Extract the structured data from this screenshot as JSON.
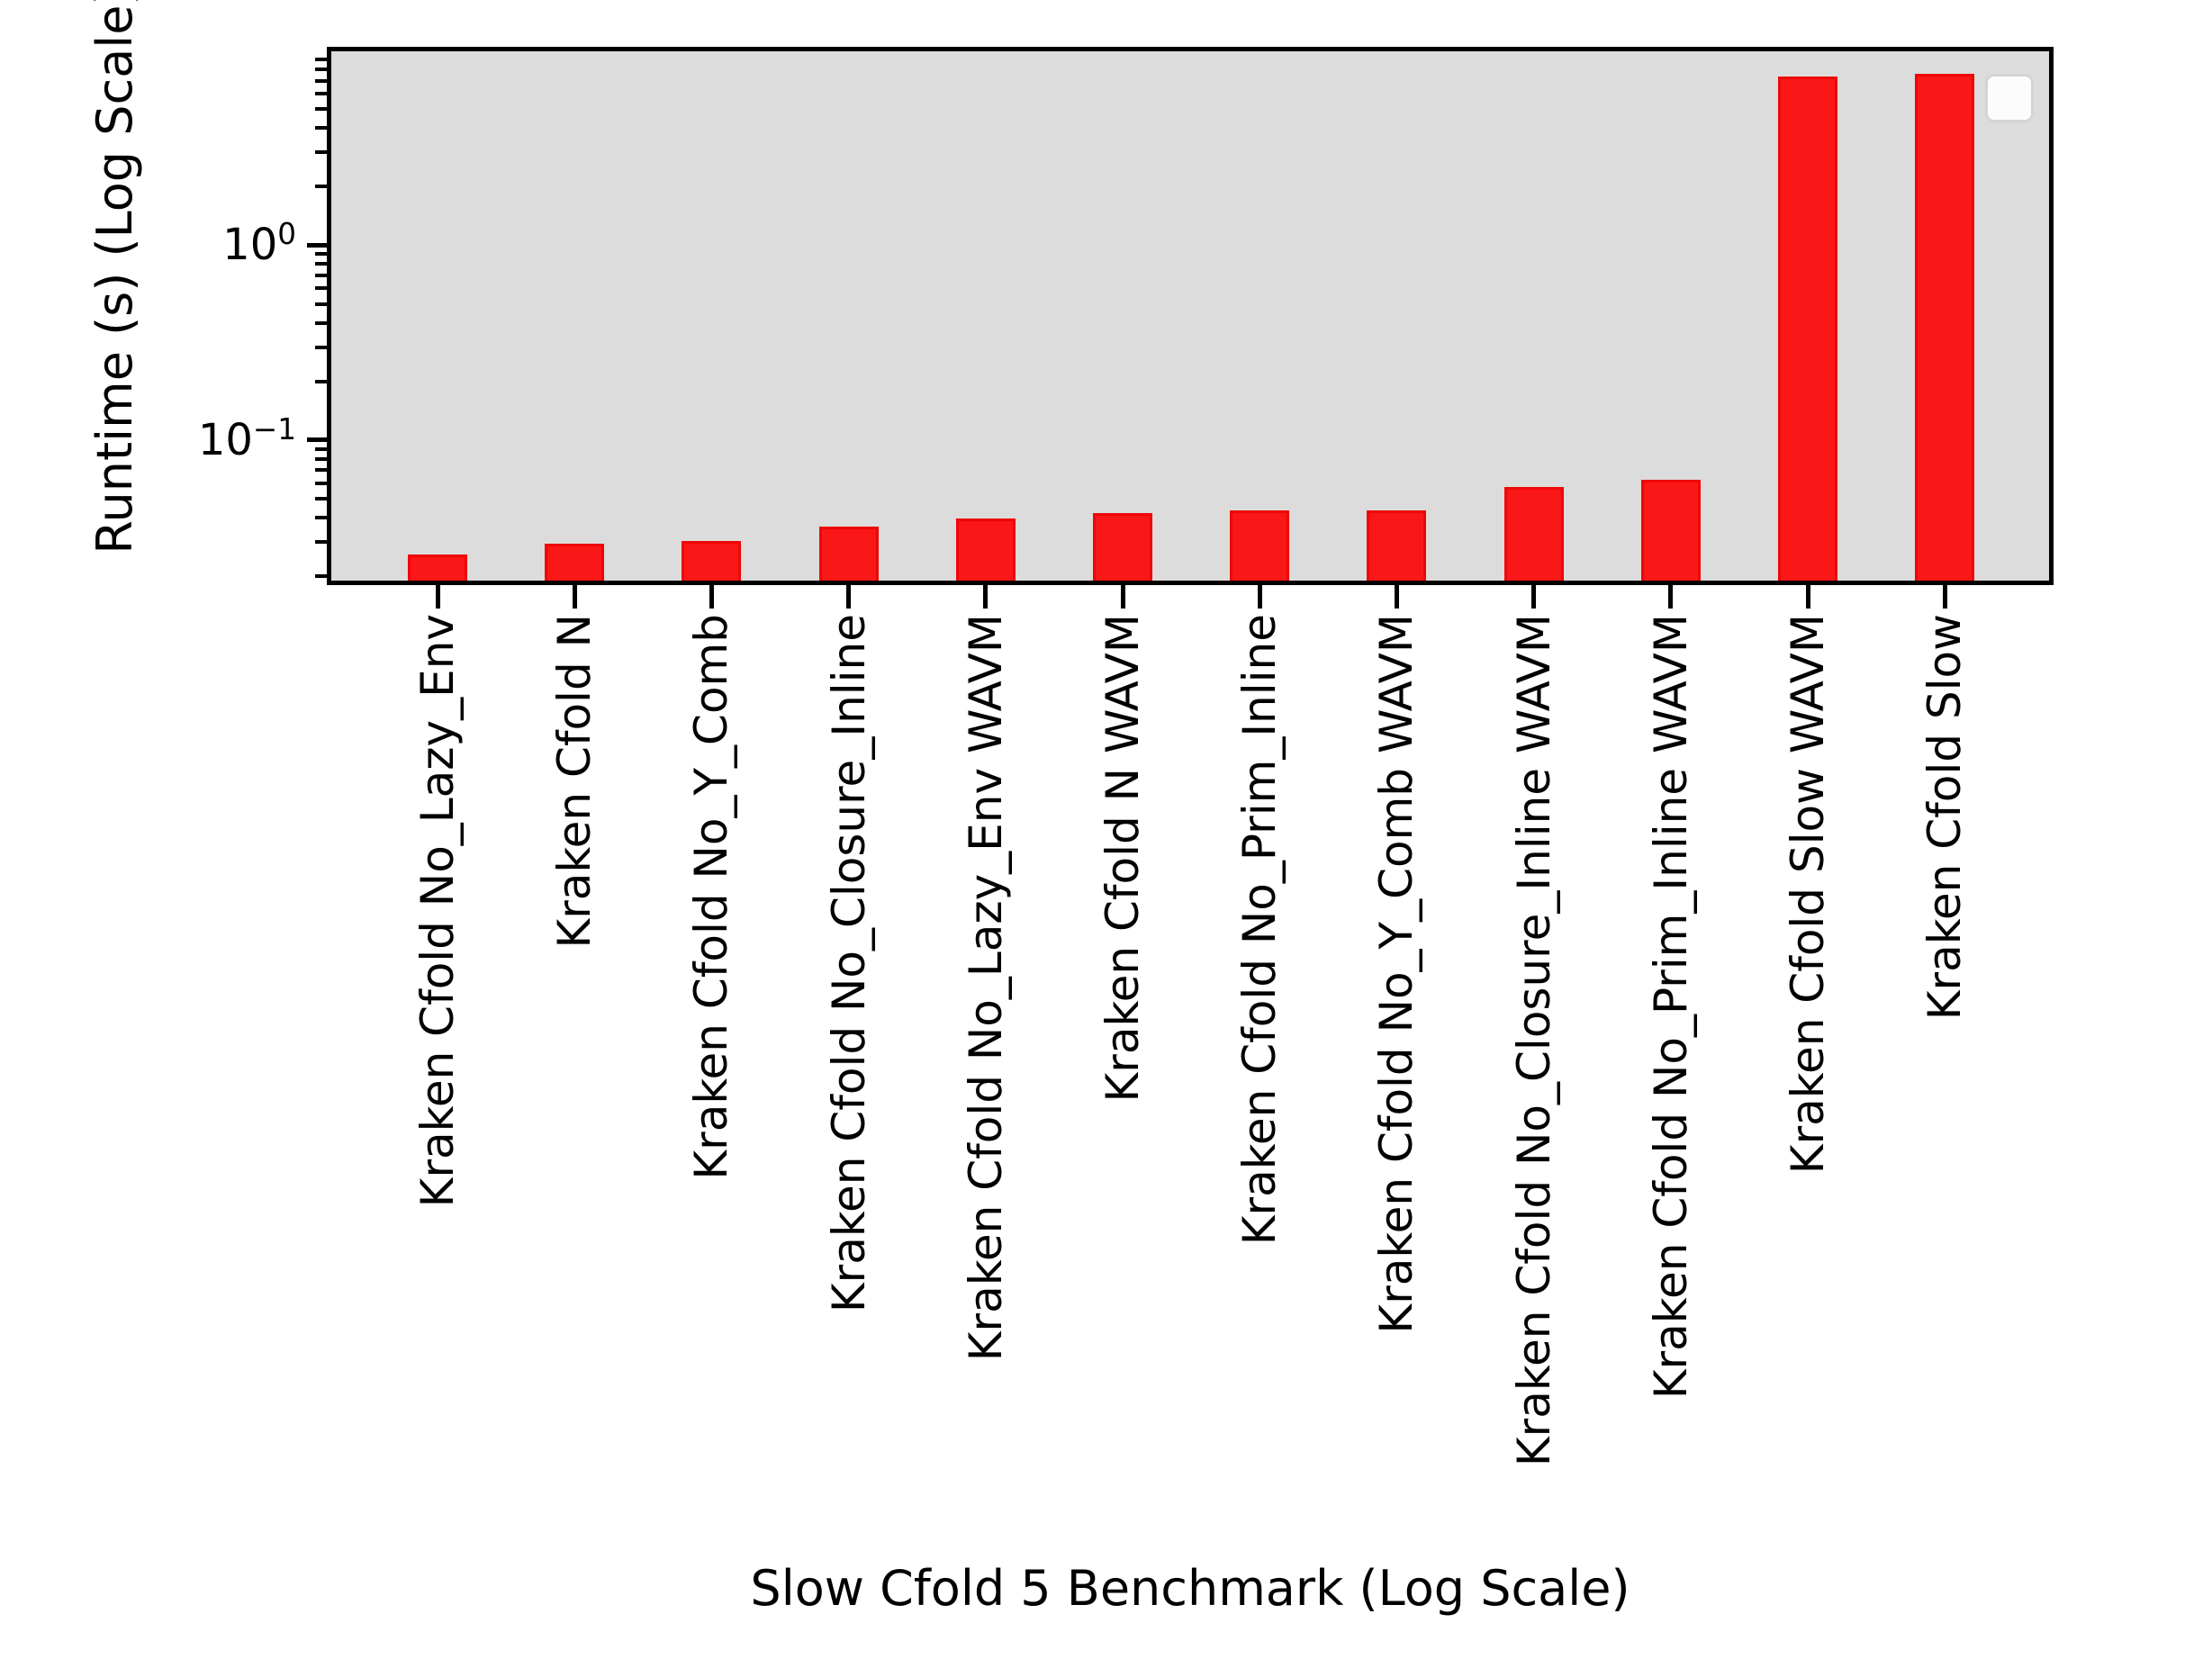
{
  "chart_data": {
    "type": "bar",
    "yscale": "log",
    "title": "",
    "xlabel": "Slow Cfold 5 Benchmark (Log Scale)",
    "ylabel": "Runtime (s) (Log Scale)",
    "categories": [
      "Kraken Cfold No_Lazy_Env",
      "Kraken Cfold N",
      "Kraken Cfold No_Y_Comb",
      "Kraken Cfold No_Closure_Inline",
      "Kraken Cfold No_Lazy_Env WAVM",
      "Kraken Cfold N WAVM",
      "Kraken Cfold No_Prim_Inline",
      "Kraken Cfold No_Y_Comb WAVM",
      "Kraken Cfold No_Closure_Inline WAVM",
      "Kraken Cfold No_Prim_Inline WAVM",
      "Kraken Cfold Slow WAVM",
      "Kraken Cfold Slow"
    ],
    "values": [
      0.026,
      0.0295,
      0.0305,
      0.036,
      0.0397,
      0.042,
      0.0437,
      0.0437,
      0.0576,
      0.0627,
      7.35,
      7.6
    ],
    "ylim": [
      0.019,
      9.9
    ],
    "ytick_major": [
      {
        "value": 1,
        "base": "10",
        "exp": "0"
      },
      {
        "value": 0.1,
        "base": "10",
        "exp": "−1"
      }
    ],
    "grid": false,
    "legend": {
      "present": true,
      "entries": []
    },
    "colors": {
      "bar_fill": "#fa1717",
      "bar_edge": "#ef0606",
      "plot_bg": "#dcdcdc",
      "figure_bg": "#ffffff",
      "spine": "#000000",
      "legend_bg": "#fcfcfc",
      "legend_border": "#d4d4d4"
    }
  }
}
